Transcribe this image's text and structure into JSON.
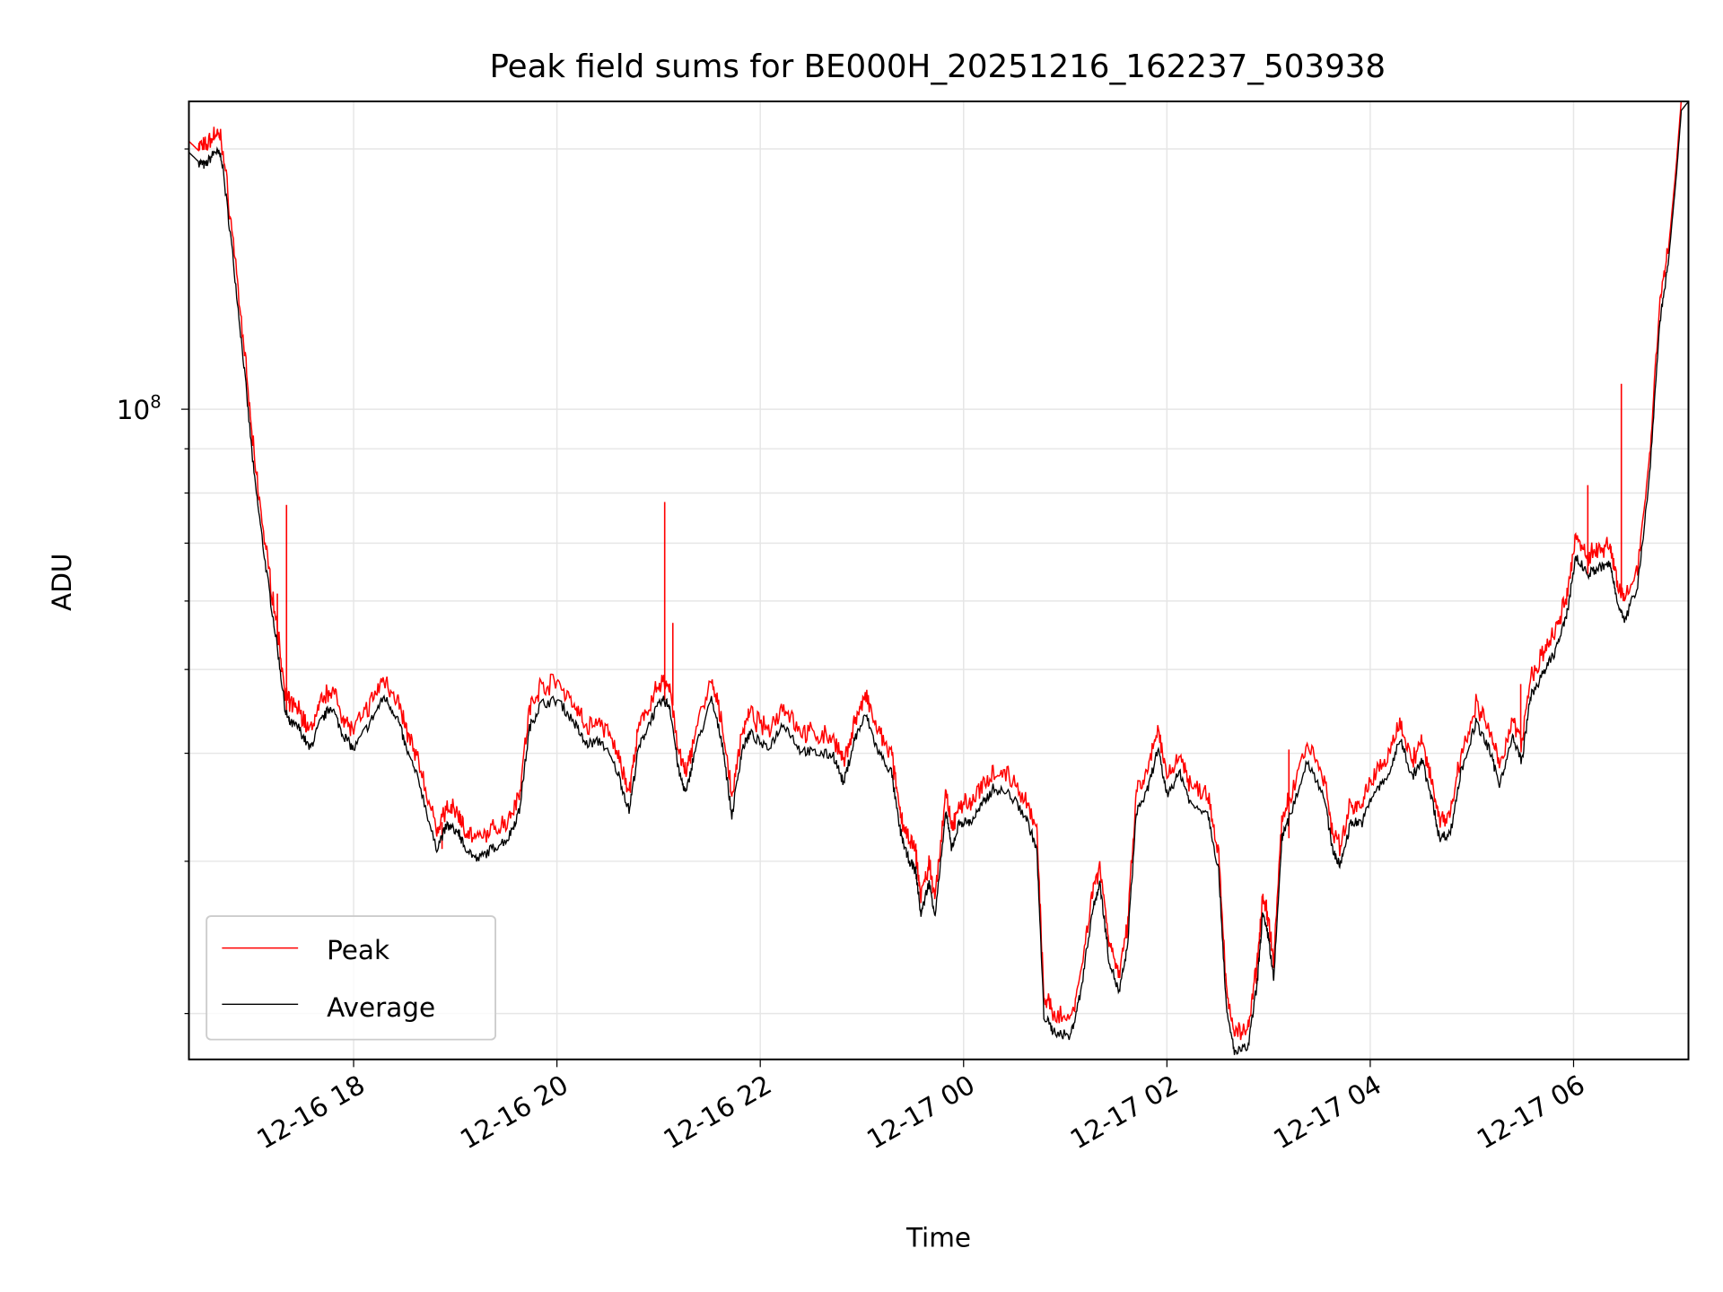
{
  "chart_data": {
    "type": "line",
    "title": "Peak field sums for BE000H_20251216_162237_503938",
    "xlabel": "Time",
    "ylabel": "ADU",
    "yscale": "log",
    "x_unit": "hours since 2025-12-16 00:00",
    "y_unit": "ADU (millions)",
    "xlim": [
      16.38,
      31.13
    ],
    "ylim": [
      17.7,
      227
    ],
    "grid": true,
    "legend_position": "lower-left",
    "x_ticks": [
      {
        "value": 18,
        "label": "12-16 18"
      },
      {
        "value": 20,
        "label": "12-16 20"
      },
      {
        "value": 22,
        "label": "12-16 22"
      },
      {
        "value": 24,
        "label": "12-17 00"
      },
      {
        "value": 26,
        "label": "12-17 02"
      },
      {
        "value": 28,
        "label": "12-17 04"
      },
      {
        "value": 30,
        "label": "12-17 06"
      }
    ],
    "y_major_ticks": [
      {
        "value": 100,
        "base": "10",
        "exp": "8"
      }
    ],
    "y_minor_ticks": [
      20,
      30,
      40,
      50,
      60,
      70,
      80,
      90,
      200
    ],
    "x": [
      16.38,
      16.48,
      16.54,
      16.64,
      16.7,
      16.81,
      16.92,
      17.02,
      17.13,
      17.24,
      17.33,
      17.37,
      17.46,
      17.57,
      17.67,
      17.78,
      17.89,
      18.0,
      18.16,
      18.3,
      18.43,
      18.52,
      18.65,
      18.81,
      18.92,
      19.03,
      19.08,
      19.21,
      19.36,
      19.52,
      19.63,
      19.73,
      19.84,
      20.01,
      20.17,
      20.28,
      20.44,
      20.6,
      20.71,
      20.8,
      20.93,
      21.04,
      21.11,
      21.2,
      21.27,
      21.36,
      21.52,
      21.63,
      21.72,
      21.82,
      21.9,
      22.07,
      22.23,
      22.39,
      22.55,
      22.72,
      22.82,
      22.93,
      23.04,
      23.15,
      23.29,
      23.37,
      23.44,
      23.53,
      23.58,
      23.66,
      23.72,
      23.83,
      23.88,
      23.96,
      24.07,
      24.18,
      24.29,
      24.45,
      24.61,
      24.72,
      24.79,
      24.88,
      25.05,
      25.15,
      25.26,
      25.34,
      25.43,
      25.53,
      25.61,
      25.7,
      25.8,
      25.91,
      26.0,
      26.13,
      26.24,
      26.4,
      26.51,
      26.59,
      26.67,
      26.8,
      26.89,
      26.94,
      27.0,
      27.05,
      27.13,
      27.21,
      27.38,
      27.54,
      27.63,
      27.7,
      27.81,
      27.92,
      28.03,
      28.17,
      28.3,
      28.41,
      28.51,
      28.62,
      28.68,
      28.79,
      28.89,
      29.04,
      29.17,
      29.27,
      29.4,
      29.49,
      29.58,
      29.71,
      29.82,
      29.93,
      30.02,
      30.14,
      30.25,
      30.36,
      30.42,
      30.5,
      30.63,
      30.74,
      30.85,
      30.93,
      31.01,
      31.06,
      31.13
    ],
    "series": [
      {
        "name": "Peak",
        "color": "#ff0000",
        "relative_to_average": 1.03,
        "spikes": [
          {
            "x": 17.25,
            "y": 61.2
          },
          {
            "x": 17.34,
            "y": 77.5
          },
          {
            "x": 18.87,
            "y": 33.3
          },
          {
            "x": 21.06,
            "y": 78.1
          },
          {
            "x": 21.14,
            "y": 56.6
          },
          {
            "x": 27.2,
            "y": 40.4
          },
          {
            "x": 29.48,
            "y": 48.1
          },
          {
            "x": 30.14,
            "y": 81.7
          },
          {
            "x": 30.47,
            "y": 107.0
          }
        ]
      },
      {
        "name": "Average",
        "color": "#000000",
        "values": [
          198.2,
          193.1,
          191.4,
          198.8,
          195.9,
          151.3,
          112.8,
          84.1,
          66.5,
          54.1,
          44.7,
          43.4,
          42.8,
          40.4,
          43.4,
          45.4,
          42.2,
          40.4,
          43.4,
          46.5,
          44.0,
          40.4,
          36.9,
          31.0,
          33.0,
          32.4,
          31.4,
          30.1,
          31.0,
          31.9,
          34.3,
          42.8,
          45.6,
          46.1,
          43.4,
          41.0,
          41.3,
          38.0,
          34.3,
          40.4,
          44.0,
          46.1,
          45.4,
          38.0,
          35.9,
          40.4,
          46.1,
          41.0,
          33.8,
          40.4,
          42.2,
          40.4,
          43.4,
          40.4,
          40.0,
          39.8,
          36.9,
          41.6,
          44.3,
          40.4,
          38.0,
          32.8,
          30.5,
          29.2,
          26.0,
          28.4,
          26.0,
          34.3,
          31.0,
          33.3,
          33.3,
          34.8,
          36.4,
          35.9,
          33.8,
          31.0,
          19.9,
          19.1,
          18.8,
          21.1,
          26.0,
          28.4,
          23.1,
          21.1,
          23.8,
          34.3,
          35.9,
          40.4,
          35.9,
          38.0,
          34.8,
          34.3,
          29.2,
          19.9,
          18.0,
          18.3,
          21.8,
          26.0,
          24.5,
          21.8,
          31.9,
          33.8,
          39.2,
          35.9,
          31.0,
          29.6,
          33.3,
          33.3,
          35.9,
          37.5,
          41.6,
          37.5,
          39.2,
          34.8,
          31.9,
          32.4,
          38.0,
          43.4,
          40.4,
          36.9,
          41.6,
          39.2,
          46.7,
          49.6,
          52.6,
          57.4,
          67.5,
          64.5,
          65.5,
          66.1,
          60.9,
          56.6,
          62.7,
          81.7,
          126.9,
          146.9,
          185.8,
          221.6,
          227.0
        ]
      }
    ]
  }
}
